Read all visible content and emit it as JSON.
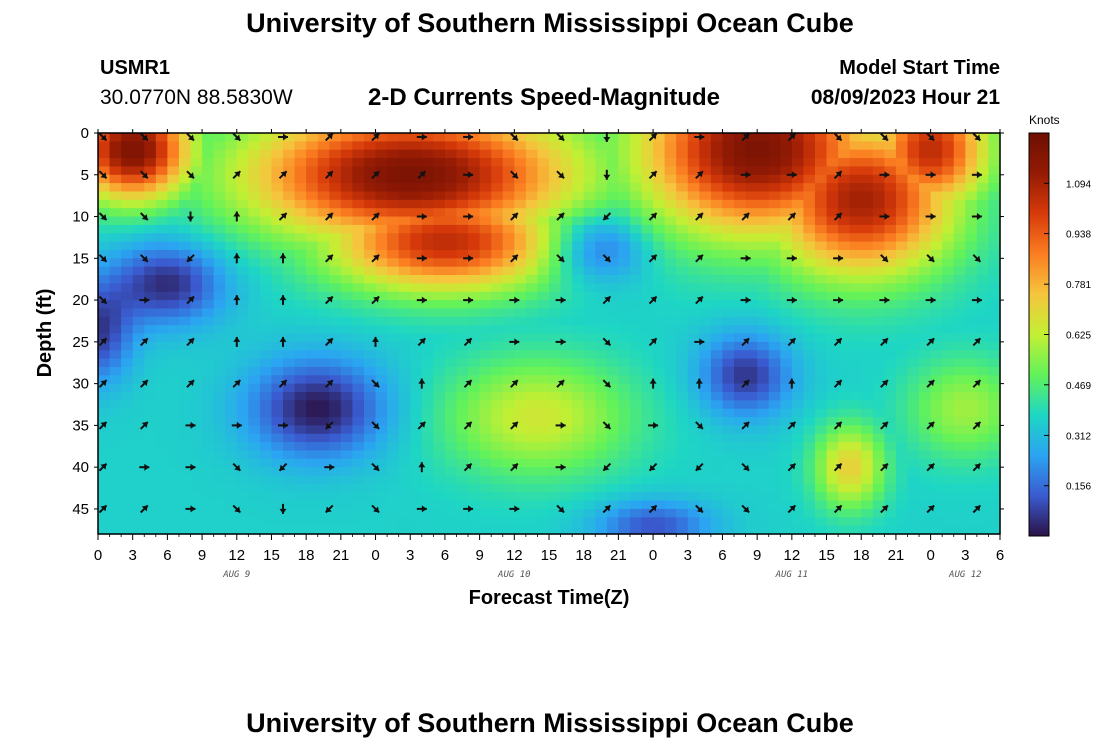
{
  "title": "University of Southern Mississippi Ocean Cube",
  "station": {
    "id": "USMR1",
    "coords": "30.0770N  88.5830W"
  },
  "subtitle": "2-D Currents Speed-Magnitude",
  "model_start": {
    "label": "Model Start Time",
    "value": "08/09/2023 Hour 21"
  },
  "colorbar": {
    "units": "Knots",
    "ticks": [
      "0.156",
      "0.312",
      "0.469",
      "0.625",
      "0.781",
      "0.938",
      "1.094"
    ],
    "tick_values": [
      0.156,
      0.312,
      0.469,
      0.625,
      0.781,
      0.938,
      1.094
    ],
    "range": [
      0.0,
      1.25
    ],
    "colormap": [
      "#2b1247",
      "#3a5bd0",
      "#2ba4f2",
      "#1ed6c4",
      "#62f25a",
      "#c3ef33",
      "#f6c53d",
      "#fb7e21",
      "#d73a0a",
      "#951b04",
      "#6d0f03"
    ]
  },
  "chart_data": {
    "type": "heatmap",
    "title": "2-D Currents Speed-Magnitude",
    "xlabel": "Forecast Time(Z)",
    "ylabel": "Depth (ft)",
    "x_ticks": [
      "0",
      "3",
      "6",
      "9",
      "12",
      "15",
      "18",
      "21",
      "0",
      "3",
      "6",
      "9",
      "12",
      "15",
      "18",
      "21",
      "0",
      "3",
      "6",
      "9",
      "12",
      "15",
      "18",
      "21",
      "0",
      "3",
      "6"
    ],
    "x_hours": [
      0,
      3,
      6,
      9,
      12,
      15,
      18,
      21,
      24,
      27,
      30,
      33,
      36,
      39,
      42,
      45,
      48,
      51,
      54,
      57,
      60,
      63,
      66,
      69,
      72,
      75,
      78
    ],
    "day_labels": [
      {
        "label": "AUG 9",
        "hour": 12
      },
      {
        "label": "AUG 10",
        "hour": 36
      },
      {
        "label": "AUG 11",
        "hour": 60
      },
      {
        "label": "AUG 12",
        "hour": 75
      }
    ],
    "xlim": [
      0,
      78
    ],
    "y_ticks": [
      "0",
      "5",
      "10",
      "15",
      "20",
      "25",
      "30",
      "35",
      "40",
      "45"
    ],
    "y_values": [
      0,
      5,
      10,
      15,
      20,
      25,
      30,
      35,
      40,
      45
    ],
    "ylim": [
      0,
      48
    ],
    "speed_centers": [
      {
        "hour": 3,
        "depth": 2,
        "value": 1.2,
        "radius_h": 5,
        "radius_d": 6
      },
      {
        "hour": 27,
        "depth": 5,
        "value": 1.2,
        "radius_h": 14,
        "radius_d": 8
      },
      {
        "hour": 30,
        "depth": 13,
        "value": 1.05,
        "radius_h": 10,
        "radius_d": 6
      },
      {
        "hour": 57,
        "depth": 2,
        "value": 1.2,
        "radius_h": 10,
        "radius_d": 10
      },
      {
        "hour": 66,
        "depth": 8,
        "value": 1.1,
        "radius_h": 8,
        "radius_d": 9
      },
      {
        "hour": 72,
        "depth": 2,
        "value": 1.05,
        "radius_h": 5,
        "radius_d": 7
      },
      {
        "hour": 38,
        "depth": 34,
        "value": 0.65,
        "radius_h": 8,
        "radius_d": 7
      },
      {
        "hour": 65,
        "depth": 40,
        "value": 0.72,
        "radius_h": 3,
        "radius_d": 5
      },
      {
        "hour": 75,
        "depth": 33,
        "value": 0.58,
        "radius_h": 5,
        "radius_d": 6
      },
      {
        "hour": 19,
        "depth": 33,
        "value": -0.35,
        "radius_h": 6,
        "radius_d": 6
      },
      {
        "hour": 6,
        "depth": 18,
        "value": -0.32,
        "radius_h": 5,
        "radius_d": 5
      },
      {
        "hour": 0,
        "depth": 24,
        "value": -0.28,
        "radius_h": 3,
        "radius_d": 6
      },
      {
        "hour": 43,
        "depth": 14,
        "value": -0.25,
        "radius_h": 4,
        "radius_d": 4
      },
      {
        "hour": 56,
        "depth": 29,
        "value": -0.3,
        "radius_h": 4,
        "radius_d": 5
      },
      {
        "hour": 48,
        "depth": 47,
        "value": -0.25,
        "radius_h": 5,
        "radius_d": 3
      }
    ],
    "speed_base": 0.36,
    "vector_hours": [
      0,
      4,
      8,
      12,
      16,
      20,
      24,
      28,
      32,
      36,
      40,
      44,
      48,
      52,
      56,
      60,
      64,
      68,
      72,
      76
    ],
    "vector_depths": [
      0,
      5,
      10,
      15,
      20,
      25,
      30,
      35,
      40,
      45
    ],
    "vector_direction_deg": {
      "0": [
        135,
        135,
        135,
        135,
        90,
        45,
        45,
        90,
        90,
        135,
        135,
        180,
        45,
        90,
        45,
        45,
        135,
        135,
        135,
        135
      ],
      "5": [
        135,
        135,
        135,
        45,
        45,
        45,
        45,
        45,
        90,
        135,
        135,
        180,
        45,
        45,
        90,
        90,
        45,
        90,
        90,
        90
      ],
      "10": [
        135,
        135,
        180,
        0,
        45,
        45,
        45,
        90,
        90,
        45,
        45,
        225,
        45,
        45,
        45,
        45,
        45,
        90,
        90,
        90
      ],
      "15": [
        135,
        135,
        225,
        0,
        0,
        45,
        45,
        90,
        90,
        45,
        135,
        135,
        45,
        45,
        90,
        90,
        90,
        135,
        135,
        135
      ],
      "20": [
        135,
        90,
        45,
        0,
        0,
        45,
        45,
        90,
        90,
        90,
        90,
        45,
        45,
        45,
        90,
        90,
        90,
        90,
        90,
        90
      ],
      "25": [
        45,
        45,
        45,
        0,
        0,
        45,
        0,
        45,
        45,
        90,
        90,
        135,
        45,
        90,
        45,
        45,
        45,
        45,
        45,
        45
      ],
      "30": [
        45,
        45,
        45,
        45,
        45,
        45,
        135,
        0,
        45,
        45,
        45,
        135,
        0,
        0,
        45,
        0,
        45,
        45,
        45,
        45
      ],
      "35": [
        45,
        45,
        90,
        90,
        90,
        225,
        135,
        45,
        45,
        45,
        90,
        135,
        90,
        135,
        45,
        45,
        45,
        45,
        45,
        45
      ],
      "40": [
        45,
        90,
        90,
        135,
        225,
        90,
        135,
        0,
        45,
        45,
        90,
        225,
        225,
        225,
        135,
        45,
        45,
        45,
        45,
        45
      ],
      "45": [
        45,
        45,
        90,
        135,
        180,
        225,
        135,
        90,
        90,
        90,
        135,
        45,
        45,
        135,
        135,
        45,
        45,
        45,
        45,
        45
      ]
    }
  }
}
